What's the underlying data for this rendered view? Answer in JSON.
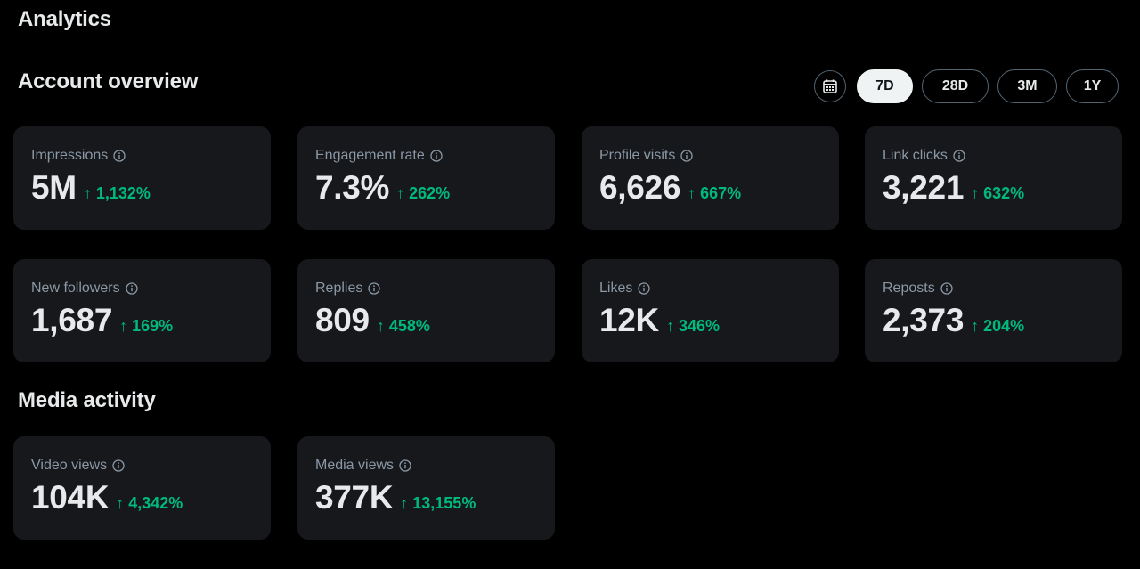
{
  "page": {
    "title": "Analytics"
  },
  "account_overview": {
    "title": "Account overview",
    "range_buttons": [
      {
        "label": "7D",
        "active": true
      },
      {
        "label": "28D",
        "active": false
      },
      {
        "label": "3M",
        "active": false
      },
      {
        "label": "1Y",
        "active": false
      }
    ],
    "cards": [
      {
        "label": "Impressions",
        "value": "5M",
        "change": "1,132%"
      },
      {
        "label": "Engagement rate",
        "value": "7.3%",
        "change": "262%"
      },
      {
        "label": "Profile visits",
        "value": "6,626",
        "change": "667%"
      },
      {
        "label": "Link clicks",
        "value": "3,221",
        "change": "632%"
      },
      {
        "label": "New followers",
        "value": "1,687",
        "change": "169%"
      },
      {
        "label": "Replies",
        "value": "809",
        "change": "458%"
      },
      {
        "label": "Likes",
        "value": "12K",
        "change": "346%"
      },
      {
        "label": "Reposts",
        "value": "2,373",
        "change": "204%"
      }
    ]
  },
  "media_activity": {
    "title": "Media activity",
    "cards": [
      {
        "label": "Video views",
        "value": "104K",
        "change": "4,342%"
      },
      {
        "label": "Media views",
        "value": "377K",
        "change": "13,155%"
      }
    ]
  },
  "colors": {
    "background": "#000000",
    "card": "#16181c",
    "positive": "#00ba7c",
    "label": "#8b98a5",
    "text": "#e7e9ea"
  },
  "icons": {
    "calendar": "calendar-icon",
    "info": "info-icon",
    "change": "arrow-up-icon"
  }
}
